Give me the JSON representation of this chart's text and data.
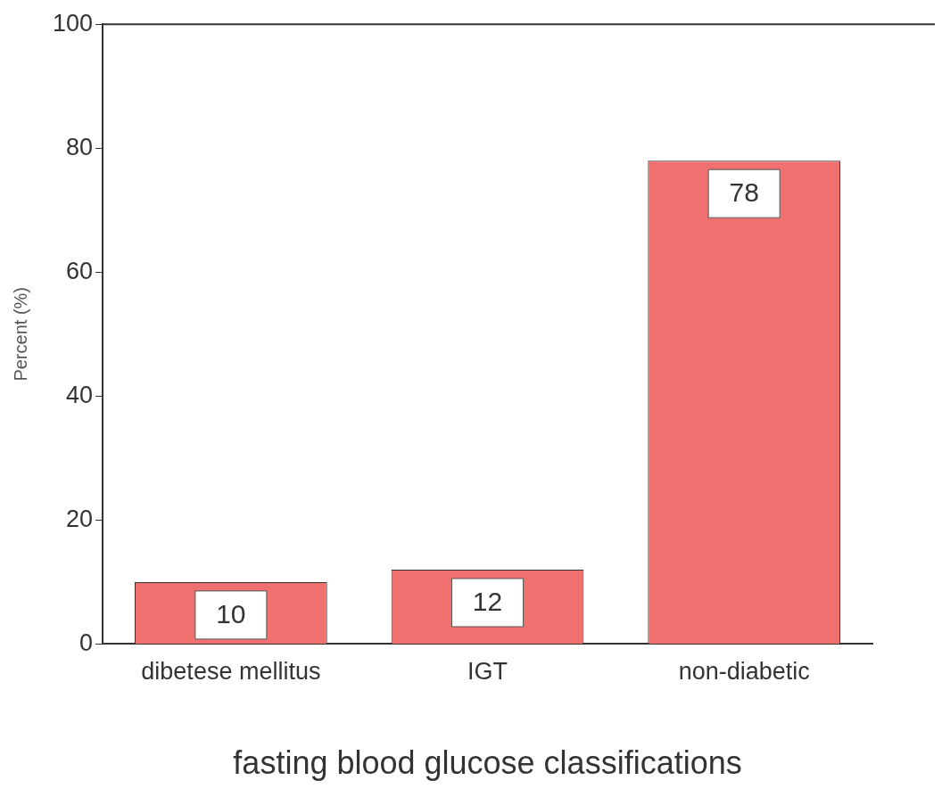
{
  "chart_data": {
    "type": "bar",
    "xlabel": "fasting blood glucose classifications",
    "ylabel": "Percent (%)",
    "categories": [
      "dibetese mellitus",
      "IGT",
      "non-diabetic"
    ],
    "values": [
      10,
      12,
      78
    ],
    "color": "#f07070",
    "ylim": [
      0,
      100
    ],
    "yticks": [
      0,
      20,
      40,
      60,
      80,
      100
    ],
    "grid": false,
    "legend": false,
    "data_labels": true
  }
}
